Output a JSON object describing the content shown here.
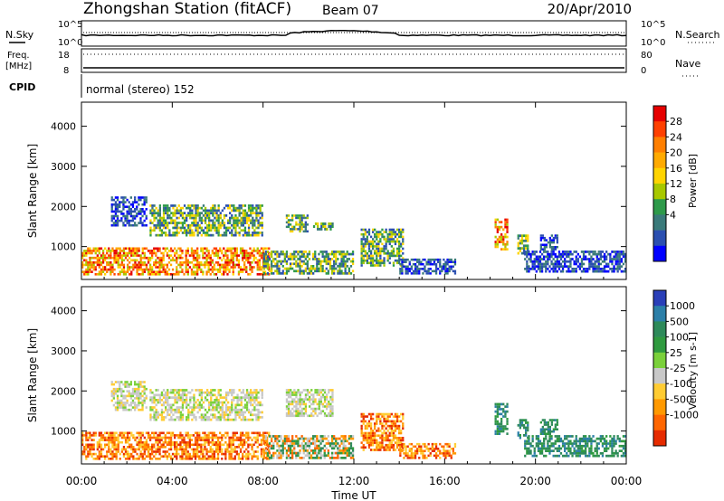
{
  "header": {
    "station": "Zhongshan Station (fitACF)",
    "beam": "Beam 07",
    "date": "20/Apr/2010"
  },
  "noise_panel": {
    "left_label": "N.Sky",
    "right_label": "N.Search",
    "left_ticks": [
      "10^5",
      "10^0"
    ],
    "right_ticks": [
      "10^5",
      "10^0"
    ]
  },
  "freq_panel": {
    "left_label_1": "Freq.",
    "left_label_2": "[MHz]",
    "left_ticks": [
      "18",
      "8"
    ],
    "right_label": "Nave",
    "right_ticks": [
      "80",
      "0"
    ]
  },
  "cpid": {
    "label": "CPID",
    "value": "normal (stereo) 152"
  },
  "power_colorbar": {
    "title": "Power [dB]",
    "ticks": [
      "28",
      "24",
      "20",
      "16",
      "12",
      "8",
      "4"
    ],
    "colors": [
      "#e60000",
      "#ff4000",
      "#ff7f00",
      "#ffaa00",
      "#ffd400",
      "#a8c800",
      "#2e9a4a",
      "#3a7a7a",
      "#2b4fb0",
      "#0000ff"
    ]
  },
  "velocity_colorbar": {
    "title": "Velocity [m s-1]",
    "ticks": [
      "1000",
      "500",
      "100",
      "25",
      "-25",
      "-100",
      "-500",
      "-1000"
    ],
    "colors": [
      "#2a3fb8",
      "#2c7fa8",
      "#2e8a5a",
      "#2f9a3f",
      "#7ad03a",
      "#c8c8c8",
      "#ffcc33",
      "#ff9900",
      "#ff6600",
      "#e62b00"
    ]
  },
  "x_axis": {
    "title": "Time UT",
    "ticks": [
      "00:00",
      "04:00",
      "08:00",
      "12:00",
      "16:00",
      "20:00",
      "00:00"
    ]
  },
  "chart_data": [
    {
      "type": "heatmap",
      "name": "power",
      "xlabel": "Time UT",
      "ylabel": "Slant Range [km]",
      "xlim": [
        0,
        24
      ],
      "ylim": [
        180,
        4600
      ],
      "yticks": [
        1000,
        2000,
        3000,
        4000
      ],
      "colorbar_label": "Power [dB]",
      "colorbar_range": [
        0,
        30
      ],
      "clusters": [
        {
          "t": [
            0.0,
            8.3
          ],
          "r": [
            280,
            980
          ],
          "level": "high"
        },
        {
          "t": [
            8.0,
            12.0
          ],
          "r": [
            300,
            900
          ],
          "level": "mid"
        },
        {
          "t": [
            1.3,
            2.9
          ],
          "r": [
            1500,
            2250
          ],
          "level": "low"
        },
        {
          "t": [
            3.0,
            8.0
          ],
          "r": [
            1250,
            2050
          ],
          "level": "mid"
        },
        {
          "t": [
            9.0,
            10.0
          ],
          "r": [
            1350,
            1800
          ],
          "level": "mid"
        },
        {
          "t": [
            10.2,
            11.1
          ],
          "r": [
            1400,
            1600
          ],
          "level": "mid"
        },
        {
          "t": [
            12.3,
            14.2
          ],
          "r": [
            500,
            1450
          ],
          "level": "mid"
        },
        {
          "t": [
            14.0,
            16.5
          ],
          "r": [
            300,
            700
          ],
          "level": "low"
        },
        {
          "t": [
            18.2,
            18.8
          ],
          "r": [
            900,
            1700
          ],
          "level": "high"
        },
        {
          "t": [
            19.2,
            19.7
          ],
          "r": [
            800,
            1300
          ],
          "level": "mid"
        },
        {
          "t": [
            20.2,
            21.0
          ],
          "r": [
            900,
            1300
          ],
          "level": "low"
        },
        {
          "t": [
            19.5,
            24.0
          ],
          "r": [
            350,
            900
          ],
          "level": "low"
        }
      ]
    },
    {
      "type": "heatmap",
      "name": "velocity",
      "xlabel": "Time UT",
      "ylabel": "Slant Range [km]",
      "xlim": [
        0,
        24
      ],
      "ylim": [
        180,
        4600
      ],
      "yticks": [
        1000,
        2000,
        3000,
        4000
      ],
      "colorbar_label": "Velocity [m s-1]",
      "colorbar_range": [
        -1000,
        1000
      ],
      "clusters": [
        {
          "t": [
            0.0,
            8.3
          ],
          "r": [
            280,
            980
          ],
          "sign": "neg"
        },
        {
          "t": [
            8.0,
            12.0
          ],
          "r": [
            300,
            900
          ],
          "sign": "mix"
        },
        {
          "t": [
            1.3,
            2.9
          ],
          "r": [
            1500,
            2250
          ],
          "sign": "zero"
        },
        {
          "t": [
            3.0,
            8.0
          ],
          "r": [
            1250,
            2050
          ],
          "sign": "zero"
        },
        {
          "t": [
            9.0,
            11.1
          ],
          "r": [
            1350,
            2050
          ],
          "sign": "zero"
        },
        {
          "t": [
            12.3,
            14.2
          ],
          "r": [
            500,
            1450
          ],
          "sign": "neg"
        },
        {
          "t": [
            14.0,
            16.5
          ],
          "r": [
            300,
            700
          ],
          "sign": "neg"
        },
        {
          "t": [
            18.2,
            18.8
          ],
          "r": [
            900,
            1700
          ],
          "sign": "pos"
        },
        {
          "t": [
            19.2,
            19.7
          ],
          "r": [
            800,
            1300
          ],
          "sign": "pos"
        },
        {
          "t": [
            20.2,
            21.0
          ],
          "r": [
            900,
            1300
          ],
          "sign": "pos"
        },
        {
          "t": [
            19.5,
            24.0
          ],
          "r": [
            350,
            900
          ],
          "sign": "pos"
        }
      ]
    }
  ]
}
